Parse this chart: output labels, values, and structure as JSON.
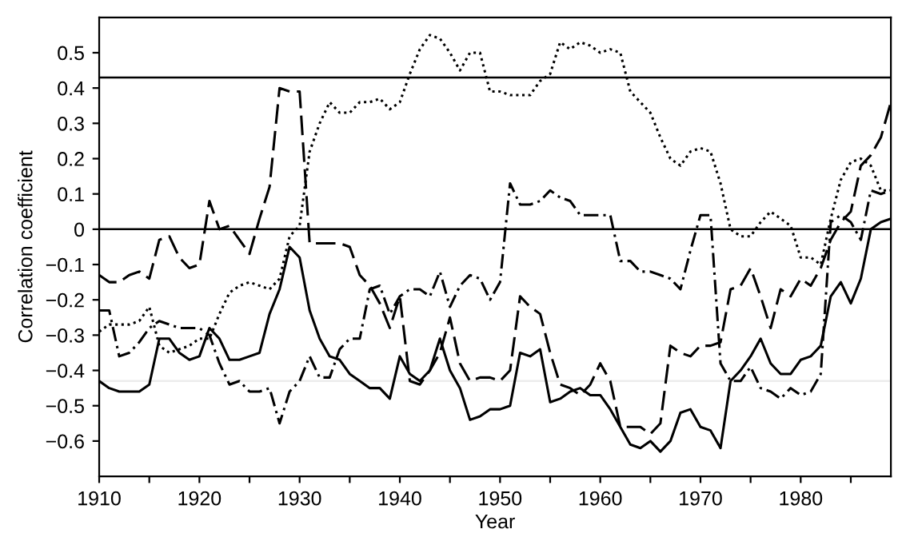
{
  "chart_data": {
    "type": "line",
    "xlabel": "Year",
    "ylabel": "Correlation coefficient",
    "x": [
      1910,
      1911,
      1912,
      1913,
      1914,
      1915,
      1916,
      1917,
      1918,
      1919,
      1920,
      1921,
      1922,
      1923,
      1924,
      1925,
      1926,
      1927,
      1928,
      1929,
      1930,
      1931,
      1932,
      1933,
      1934,
      1935,
      1936,
      1937,
      1938,
      1939,
      1940,
      1941,
      1942,
      1943,
      1944,
      1945,
      1946,
      1947,
      1948,
      1949,
      1950,
      1951,
      1952,
      1953,
      1954,
      1955,
      1956,
      1957,
      1958,
      1959,
      1960,
      1961,
      1962,
      1963,
      1964,
      1965,
      1966,
      1967,
      1968,
      1969,
      1970,
      1971,
      1972,
      1973,
      1974,
      1975,
      1976,
      1977,
      1978,
      1979,
      1980,
      1981,
      1982,
      1983,
      1984,
      1985,
      1986,
      1987,
      1988,
      1989
    ],
    "series": [
      {
        "color": "#000000",
        "line_style": "solid",
        "values": [
          -0.43,
          -0.45,
          -0.46,
          -0.46,
          -0.46,
          -0.44,
          -0.31,
          -0.31,
          -0.35,
          -0.37,
          -0.36,
          -0.28,
          -0.31,
          -0.37,
          -0.37,
          -0.36,
          -0.35,
          -0.24,
          -0.17,
          -0.05,
          -0.08,
          -0.23,
          -0.31,
          -0.36,
          -0.37,
          -0.41,
          -0.43,
          -0.45,
          -0.45,
          -0.48,
          -0.36,
          -0.41,
          -0.43,
          -0.4,
          -0.31,
          -0.4,
          -0.45,
          -0.54,
          -0.53,
          -0.51,
          -0.51,
          -0.5,
          -0.35,
          -0.36,
          -0.34,
          -0.49,
          -0.48,
          -0.46,
          -0.45,
          -0.47,
          -0.47,
          -0.51,
          -0.56,
          -0.61,
          -0.62,
          -0.6,
          -0.63,
          -0.6,
          -0.52,
          -0.51,
          -0.56,
          -0.57,
          -0.62,
          -0.43,
          -0.4,
          -0.36,
          -0.31,
          -0.38,
          -0.41,
          -0.41,
          -0.37,
          -0.36,
          -0.33,
          -0.19,
          -0.15,
          -0.21,
          -0.14,
          0.0,
          0.02,
          0.03
        ]
      },
      {
        "color": "#000000",
        "line_style": "dashed",
        "values": [
          -0.13,
          -0.15,
          -0.15,
          -0.13,
          -0.12,
          -0.14,
          -0.03,
          -0.02,
          -0.08,
          -0.11,
          -0.1,
          0.08,
          0.0,
          0.01,
          -0.03,
          -0.07,
          0.03,
          0.12,
          0.4,
          0.39,
          0.39,
          -0.04,
          -0.04,
          -0.04,
          -0.04,
          -0.05,
          -0.13,
          -0.16,
          -0.21,
          -0.28,
          -0.19,
          -0.43,
          -0.44,
          -0.4,
          -0.35,
          -0.25,
          -0.38,
          -0.43,
          -0.42,
          -0.42,
          -0.43,
          -0.4,
          -0.19,
          -0.22,
          -0.24,
          -0.35,
          -0.44,
          -0.45,
          -0.47,
          -0.44,
          -0.38,
          -0.43,
          -0.56,
          -0.56,
          -0.56,
          -0.58,
          -0.55,
          -0.33,
          -0.35,
          -0.36,
          -0.33,
          -0.33,
          -0.32,
          -0.17,
          -0.16,
          -0.11,
          -0.19,
          -0.28,
          -0.17,
          -0.19,
          -0.14,
          -0.16,
          -0.11,
          -0.03,
          0.02,
          0.05,
          0.18,
          0.21,
          0.26,
          0.36
        ]
      },
      {
        "color": "#000000",
        "line_style": "dotted",
        "values": [
          -0.29,
          -0.27,
          -0.27,
          -0.27,
          -0.26,
          -0.22,
          -0.33,
          -0.35,
          -0.34,
          -0.33,
          -0.31,
          -0.31,
          -0.24,
          -0.18,
          -0.16,
          -0.15,
          -0.16,
          -0.17,
          -0.14,
          -0.02,
          0.01,
          0.22,
          0.3,
          0.36,
          0.33,
          0.33,
          0.36,
          0.36,
          0.37,
          0.34,
          0.36,
          0.44,
          0.51,
          0.55,
          0.54,
          0.5,
          0.45,
          0.5,
          0.5,
          0.39,
          0.39,
          0.38,
          0.38,
          0.38,
          0.42,
          0.44,
          0.53,
          0.51,
          0.53,
          0.52,
          0.5,
          0.51,
          0.5,
          0.39,
          0.36,
          0.33,
          0.26,
          0.2,
          0.18,
          0.22,
          0.23,
          0.22,
          0.13,
          0.0,
          -0.02,
          -0.02,
          0.02,
          0.05,
          0.03,
          0.01,
          -0.08,
          -0.08,
          -0.1,
          0.03,
          0.14,
          0.19,
          0.2,
          0.18,
          0.11,
          0.11
        ]
      },
      {
        "color": "#000000",
        "line_style": "dashdot",
        "values": [
          -0.23,
          -0.23,
          -0.36,
          -0.35,
          -0.32,
          -0.28,
          -0.26,
          -0.27,
          -0.28,
          -0.28,
          -0.28,
          -0.3,
          -0.38,
          -0.44,
          -0.43,
          -0.46,
          -0.46,
          -0.45,
          -0.55,
          -0.46,
          -0.43,
          -0.36,
          -0.42,
          -0.42,
          -0.34,
          -0.31,
          -0.31,
          -0.17,
          -0.16,
          -0.24,
          -0.19,
          -0.17,
          -0.17,
          -0.19,
          -0.12,
          -0.22,
          -0.16,
          -0.13,
          -0.14,
          -0.2,
          -0.15,
          0.13,
          0.07,
          0.07,
          0.08,
          0.11,
          0.09,
          0.08,
          0.04,
          0.04,
          0.04,
          0.04,
          -0.09,
          -0.09,
          -0.12,
          -0.12,
          -0.13,
          -0.14,
          -0.17,
          -0.06,
          0.04,
          0.04,
          -0.38,
          -0.43,
          -0.43,
          -0.39,
          -0.45,
          -0.46,
          -0.48,
          -0.45,
          -0.47,
          -0.46,
          -0.41,
          0.02,
          0.04,
          0.02,
          -0.03,
          0.11,
          0.1,
          0.11
        ]
      }
    ],
    "xlim": [
      1910,
      1989
    ],
    "ylim": [
      -0.7,
      0.6
    ],
    "xticks": [
      1910,
      {
        "value": 1915,
        "label": null
      },
      1920,
      {
        "value": 1925,
        "label": null
      },
      1930,
      {
        "value": 1935,
        "label": null
      },
      1940,
      {
        "value": 1945,
        "label": null
      },
      1950,
      {
        "value": 1955,
        "label": null
      },
      1960,
      {
        "value": 1965,
        "label": null
      },
      1970,
      {
        "value": 1975,
        "label": null
      },
      1980,
      {
        "value": 1985,
        "label": null
      }
    ],
    "yticks": [
      {
        "value": -0.6,
        "label": "−0.6"
      },
      {
        "value": -0.5,
        "label": "−0.5"
      },
      {
        "value": -0.4,
        "label": "−0.4"
      },
      {
        "value": -0.3,
        "label": "−0.3"
      },
      {
        "value": -0.2,
        "label": "−0.2"
      },
      {
        "value": -0.1,
        "label": "−0.1"
      },
      0,
      0.1,
      0.2,
      0.3,
      0.4,
      0.5
    ],
    "ref_lines": [
      {
        "axis": "y",
        "value": 0.43,
        "color": "#000000"
      },
      {
        "axis": "y",
        "value": 0,
        "color": "#000000"
      },
      {
        "axis": "y",
        "value": -0.43,
        "color": "#ececec"
      }
    ],
    "grid": false,
    "legend": false,
    "marker": "none"
  }
}
